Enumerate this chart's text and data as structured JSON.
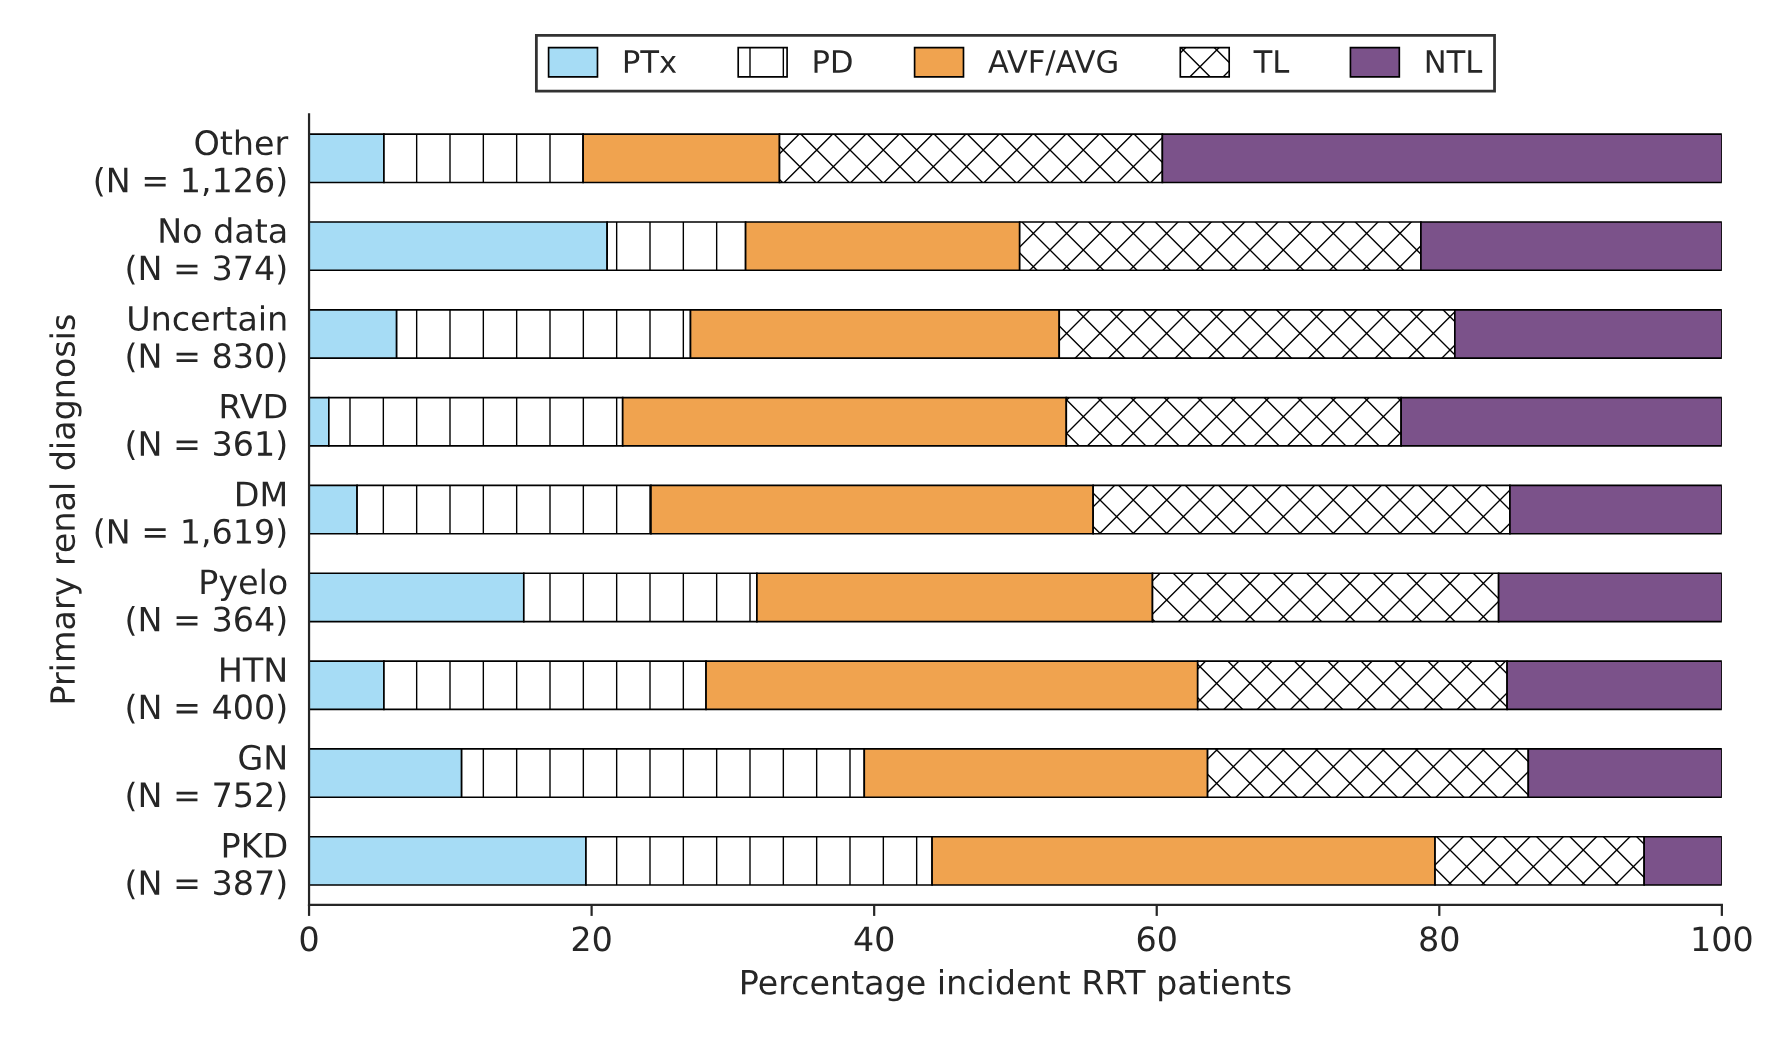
{
  "chart_data": {
    "type": "bar",
    "orientation": "horizontal",
    "stacked": true,
    "xlabel": "Percentage incident RRT patients",
    "ylabel": "Primary renal diagnosis",
    "categories": [
      "Other\n(N = 1,126)",
      "No data\n(N = 374)",
      "Uncertain\n(N = 830)",
      "RVD\n(N = 361)",
      "DM\n(N = 1,619)",
      "Pyelo\n(N = 364)",
      "HTN\n(N = 400)",
      "GN\n(N = 752)",
      "PKD\n(N = 387)"
    ],
    "series": [
      {
        "name": "PTx",
        "color": "#a6dcf5",
        "values": [
          5.3,
          21.1,
          6.2,
          1.4,
          3.4,
          15.2,
          5.3,
          10.8,
          19.6
        ]
      },
      {
        "name": "PD",
        "color": "#ffffff",
        "values": [
          14.1,
          9.8,
          20.8,
          20.8,
          20.8,
          16.5,
          22.8,
          28.5,
          24.5
        ]
      },
      {
        "name": "AVF/AVG",
        "color": "#f0a34f",
        "values": [
          13.9,
          19.4,
          26.1,
          31.4,
          31.3,
          28.0,
          34.8,
          24.3,
          35.6
        ]
      },
      {
        "name": "TL",
        "color": "#ffffff",
        "values": [
          27.1,
          28.4,
          28.0,
          23.7,
          29.5,
          24.5,
          21.9,
          22.7,
          14.8
        ]
      },
      {
        "name": "NTL",
        "color": "#7b528a",
        "values": [
          39.6,
          21.3,
          18.9,
          22.7,
          15.0,
          15.8,
          15.2,
          13.7,
          5.5
        ]
      }
    ],
    "xlim": [
      0,
      100
    ],
    "xticks": [
      0,
      20,
      40,
      60,
      80,
      100
    ],
    "grid": false,
    "legend": "top"
  }
}
